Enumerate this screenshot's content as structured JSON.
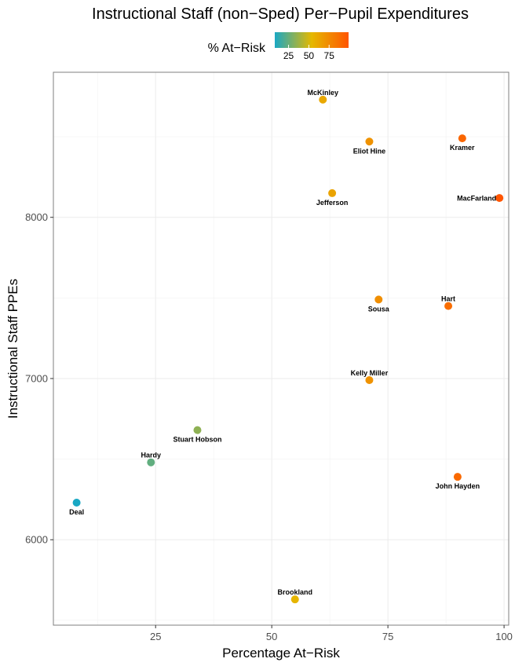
{
  "chart_data": {
    "type": "scatter",
    "title": "Instructional Staff (non−Sped) Per−Pupil Expenditures",
    "xlabel": "Percentage At−Risk",
    "ylabel": "Instructional Staff PPEs",
    "xlim": [
      3,
      101
    ],
    "ylim": [
      5470,
      8900
    ],
    "x_ticks": [
      25,
      50,
      75,
      100
    ],
    "y_ticks": [
      6000,
      7000,
      8000
    ],
    "grid": true,
    "legend": {
      "title": "% At−Risk",
      "placement": "top",
      "ticks": [
        25,
        50,
        75
      ],
      "range": [
        8,
        99
      ],
      "colors": [
        "#1aa8c4",
        "#e5b800",
        "#ff5500"
      ]
    },
    "points": [
      {
        "name": "McKinley",
        "x": 61,
        "y": 8730,
        "label_pos": "above"
      },
      {
        "name": "Eliot Hine",
        "x": 71,
        "y": 8470,
        "label_pos": "below"
      },
      {
        "name": "Kramer",
        "x": 91,
        "y": 8490,
        "label_pos": "below"
      },
      {
        "name": "Jefferson",
        "x": 63,
        "y": 8150,
        "label_pos": "below"
      },
      {
        "name": "MacFarland",
        "x": 99,
        "y": 8120,
        "label_pos": "left"
      },
      {
        "name": "Sousa",
        "x": 73,
        "y": 7490,
        "label_pos": "below"
      },
      {
        "name": "Hart",
        "x": 88,
        "y": 7450,
        "label_pos": "above"
      },
      {
        "name": "Kelly Miller",
        "x": 71,
        "y": 6990,
        "label_pos": "above"
      },
      {
        "name": "Stuart Hobson",
        "x": 34,
        "y": 6680,
        "label_pos": "below"
      },
      {
        "name": "Hardy",
        "x": 24,
        "y": 6480,
        "label_pos": "above"
      },
      {
        "name": "John Hayden",
        "x": 90,
        "y": 6390,
        "label_pos": "below"
      },
      {
        "name": "Deal",
        "x": 8,
        "y": 6230,
        "label_pos": "below"
      },
      {
        "name": "Brookland",
        "x": 55,
        "y": 5630,
        "label_pos": "above"
      }
    ]
  }
}
